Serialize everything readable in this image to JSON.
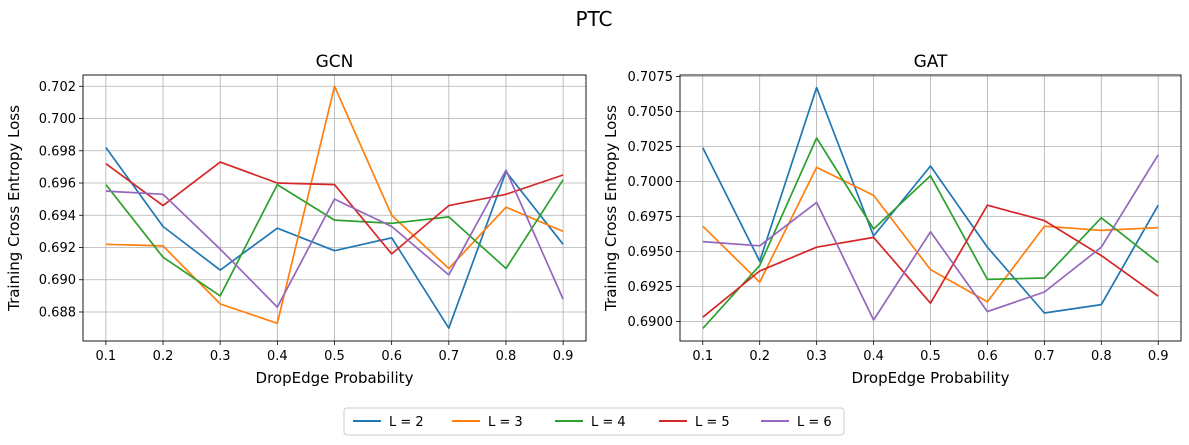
{
  "figure": {
    "title": "PTC"
  },
  "legend": {
    "placement": "bottom-center",
    "entries": [
      {
        "label": "L = 2",
        "color": "#1f77b4"
      },
      {
        "label": "L = 3",
        "color": "#ff7f0e"
      },
      {
        "label": "L = 4",
        "color": "#2ca02c"
      },
      {
        "label": "L = 5",
        "color": "#d62728"
      },
      {
        "label": "L = 6",
        "color": "#9467bd"
      }
    ]
  },
  "chart_data": [
    {
      "type": "line",
      "title": "GCN",
      "xlabel": "DropEdge Probability",
      "ylabel": "Training Cross Entropy Loss",
      "grid": true,
      "x": [
        0.1,
        0.2,
        0.3,
        0.4,
        0.5,
        0.6,
        0.7,
        0.8,
        0.9
      ],
      "xticks": [
        "0.1",
        "0.2",
        "0.3",
        "0.4",
        "0.5",
        "0.6",
        "0.7",
        "0.8",
        "0.9"
      ],
      "xlim": [
        0.06,
        0.94
      ],
      "ylim": [
        0.6862,
        0.7027
      ],
      "yticks": [
        0.688,
        0.69,
        0.692,
        0.694,
        0.696,
        0.698,
        0.7,
        0.702
      ],
      "ytick_labels": [
        "0.688",
        "0.690",
        "0.692",
        "0.694",
        "0.696",
        "0.698",
        "0.700",
        "0.702"
      ],
      "series": [
        {
          "name": "L = 2",
          "color": "#1f77b4",
          "values": [
            0.6982,
            0.6933,
            0.6906,
            0.6932,
            0.6918,
            0.6926,
            0.687,
            0.6967,
            0.6922
          ]
        },
        {
          "name": "L = 3",
          "color": "#ff7f0e",
          "values": [
            0.6922,
            0.6921,
            0.6885,
            0.6873,
            0.702,
            0.694,
            0.6907,
            0.6945,
            0.693
          ]
        },
        {
          "name": "L = 4",
          "color": "#2ca02c",
          "values": [
            0.6959,
            0.6914,
            0.689,
            0.6959,
            0.6937,
            0.6935,
            0.6939,
            0.6907,
            0.6962
          ]
        },
        {
          "name": "L = 5",
          "color": "#d62728",
          "values": [
            0.6972,
            0.6946,
            0.6973,
            0.696,
            0.6959,
            0.6916,
            0.6946,
            0.6953,
            0.6965
          ]
        },
        {
          "name": "L = 6",
          "color": "#9467bd",
          "values": [
            0.6955,
            0.6953,
            0.6919,
            0.6883,
            0.695,
            0.6933,
            0.6903,
            0.6968,
            0.6888
          ]
        }
      ]
    },
    {
      "type": "line",
      "title": "GAT",
      "xlabel": "DropEdge Probability",
      "ylabel": "Training Cross Entropy Loss",
      "grid": true,
      "x": [
        0.1,
        0.2,
        0.3,
        0.4,
        0.5,
        0.6,
        0.7,
        0.8,
        0.9
      ],
      "xticks": [
        "0.1",
        "0.2",
        "0.3",
        "0.4",
        "0.5",
        "0.6",
        "0.7",
        "0.8",
        "0.9"
      ],
      "xlim": [
        0.06,
        0.94
      ],
      "ylim": [
        0.6886,
        0.7076
      ],
      "yticks": [
        0.69,
        0.6925,
        0.695,
        0.6975,
        0.7,
        0.7025,
        0.705,
        0.7075
      ],
      "ytick_labels": [
        "0.6900",
        "0.6925",
        "0.6950",
        "0.6975",
        "0.7000",
        "0.7025",
        "0.7050",
        "0.7075"
      ],
      "series": [
        {
          "name": "L = 2",
          "color": "#1f77b4",
          "values": [
            0.7024,
            0.6943,
            0.7067,
            0.6961,
            0.7011,
            0.6953,
            0.6906,
            0.6912,
            0.6983
          ]
        },
        {
          "name": "L = 3",
          "color": "#ff7f0e",
          "values": [
            0.6968,
            0.6928,
            0.701,
            0.699,
            0.6937,
            0.6914,
            0.6968,
            0.6965,
            0.6967
          ]
        },
        {
          "name": "L = 4",
          "color": "#2ca02c",
          "values": [
            0.6895,
            0.694,
            0.7031,
            0.6966,
            0.7004,
            0.693,
            0.6931,
            0.6974,
            0.6942
          ]
        },
        {
          "name": "L = 5",
          "color": "#d62728",
          "values": [
            0.6903,
            0.6936,
            0.6953,
            0.696,
            0.6913,
            0.6983,
            0.6972,
            0.6947,
            0.6918
          ]
        },
        {
          "name": "L = 6",
          "color": "#9467bd",
          "values": [
            0.6957,
            0.6954,
            0.6985,
            0.6901,
            0.6964,
            0.6907,
            0.6921,
            0.6953,
            0.7019
          ]
        }
      ]
    }
  ]
}
